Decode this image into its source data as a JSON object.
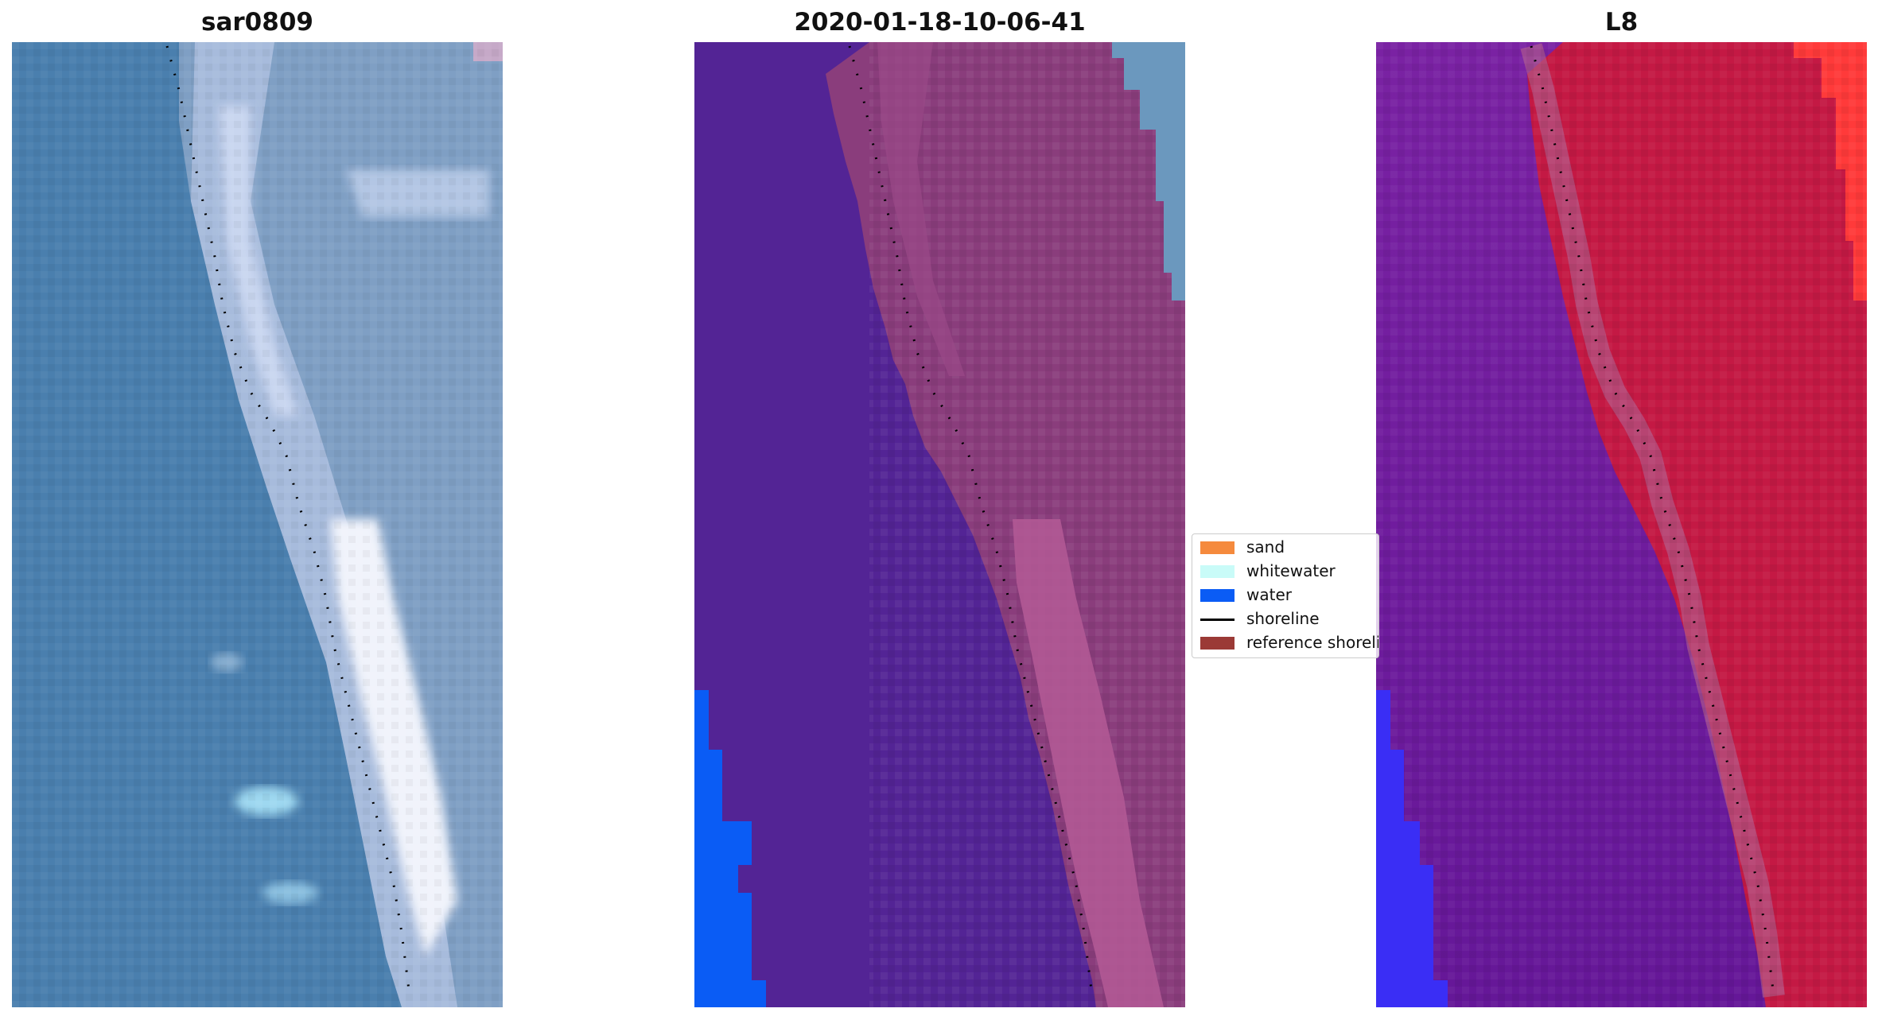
{
  "panels": [
    {
      "title": "sar0809"
    },
    {
      "title": "2020-01-18-10-06-41"
    },
    {
      "title": "L8"
    }
  ],
  "legend": {
    "items": [
      {
        "label": "sand",
        "kind": "patch",
        "color": "#f58a3d"
      },
      {
        "label": "whitewater",
        "kind": "patch",
        "color": "#c9fbf8"
      },
      {
        "label": "water",
        "kind": "patch",
        "color": "#0a5cf5"
      },
      {
        "label": "shoreline",
        "kind": "line",
        "color": "#000000"
      },
      {
        "label": "reference shoreline",
        "kind": "patch",
        "color": "#9b3a36"
      }
    ]
  }
}
